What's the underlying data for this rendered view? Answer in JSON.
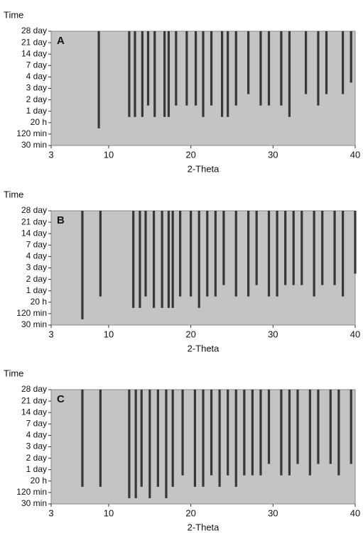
{
  "chart_data": [
    {
      "type": "heatmap",
      "panel": "A",
      "ylabel": "Time",
      "xlabel": "2-Theta",
      "categories": [
        "30 min",
        "120 min",
        "20 h",
        "1 day",
        "2 day",
        "3 day",
        "4 day",
        "7 day",
        "14 day",
        "21 day",
        "28 day"
      ],
      "xlim": [
        3,
        40
      ],
      "xticks": [
        3,
        10,
        20,
        30,
        40
      ],
      "peaks": {
        "x": [
          8.8,
          12.5,
          13.2,
          14.1,
          14.8,
          15.6,
          16.8,
          17.3,
          18.2,
          19.5,
          20.6,
          21.5,
          22.5,
          23.8,
          24.5,
          25.5,
          27,
          28.5,
          29.5,
          31,
          32,
          34,
          35.5,
          36.5,
          38.5,
          39.5
        ],
        "onset": [
          "20 h",
          "1 day",
          "1 day",
          "1 day",
          "2 day",
          "1 day",
          "1 day",
          "1 day",
          "2 day",
          "2 day",
          "2 day",
          "1 day",
          "2 day",
          "1 day",
          "1 day",
          "2 day",
          "3 day",
          "2 day",
          "2 day",
          "2 day",
          "1 day",
          "3 day",
          "2 day",
          "3 day",
          "3 day",
          "4 day"
        ]
      }
    },
    {
      "type": "heatmap",
      "panel": "B",
      "ylabel": "Time",
      "xlabel": "2-Theta",
      "categories": [
        "30 min",
        "120 min",
        "20 h",
        "1 day",
        "2 day",
        "3 day",
        "4 day",
        "7 day",
        "14 day",
        "21 day",
        "28 day"
      ],
      "xlim": [
        3,
        40
      ],
      "xticks": [
        3,
        10,
        20,
        30,
        40
      ],
      "peaks": {
        "x": [
          6.8,
          9,
          13,
          13.8,
          14.5,
          15.5,
          16.5,
          17.3,
          17.8,
          18.7,
          20,
          21,
          22,
          23,
          24,
          25.5,
          27,
          28,
          29.5,
          30.5,
          31.5,
          32.5,
          33.5,
          35,
          36,
          37.5,
          38.5,
          40
        ],
        "onset": [
          "120 min",
          "1 day",
          "20 h",
          "20 h",
          "1 day",
          "20 h",
          "20 h",
          "20 h",
          "20 h",
          "1 day",
          "1 day",
          "20 h",
          "1 day",
          "1 day",
          "2 day",
          "1 day",
          "1 day",
          "2 day",
          "1 day",
          "1 day",
          "2 day",
          "2 day",
          "2 day",
          "1 day",
          "2 day",
          "2 day",
          "1 day",
          "3 day"
        ]
      }
    },
    {
      "type": "heatmap",
      "panel": "C",
      "ylabel": "Time",
      "xlabel": "2-Theta",
      "categories": [
        "30 min",
        "120 min",
        "20 h",
        "1 day",
        "2 day",
        "3 day",
        "4 day",
        "7 day",
        "14 day",
        "21 day",
        "28 day"
      ],
      "xlim": [
        3,
        40
      ],
      "xticks": [
        3,
        10,
        20,
        30,
        40
      ],
      "peaks": {
        "x": [
          6.8,
          9,
          12.5,
          13.3,
          14,
          15,
          16,
          17,
          17.8,
          19,
          20.5,
          21.5,
          22.5,
          23.5,
          24.5,
          25.5,
          26.5,
          27.5,
          28.5,
          29.5,
          31,
          32,
          33,
          34.5,
          35.5,
          37,
          38,
          39.5
        ],
        "onset": [
          "20 h",
          "20 h",
          "120 min",
          "120 min",
          "20 h",
          "120 min",
          "20 h",
          "120 min",
          "20 h",
          "1 day",
          "20 h",
          "20 h",
          "1 day",
          "20 h",
          "1 day",
          "20 h",
          "1 day",
          "1 day",
          "1 day",
          "2 day",
          "1 day",
          "1 day",
          "2 day",
          "1 day",
          "2 day",
          "2 day",
          "1 day",
          "2 day"
        ]
      }
    }
  ]
}
